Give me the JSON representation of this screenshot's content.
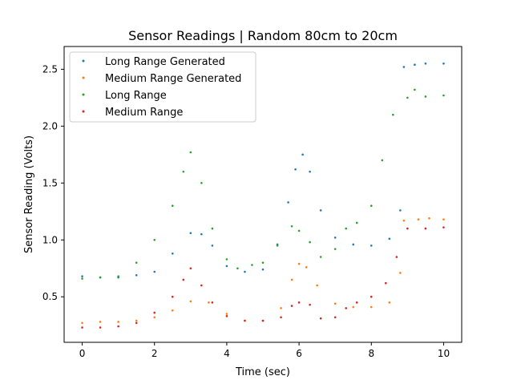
{
  "chart_data": {
    "type": "scatter",
    "title": "Sensor Readings | Random 80cm to 20cm",
    "xlabel": "Time (sec)",
    "ylabel": "Sensor Reading (Volts)",
    "xlim": [
      -0.5,
      10.5
    ],
    "ylim": [
      0.1,
      2.7
    ],
    "xticks": [
      0,
      2,
      4,
      6,
      8,
      10
    ],
    "xtick_labels": [
      "0",
      "2",
      "4",
      "6",
      "8",
      "10"
    ],
    "yticks": [
      0.5,
      1.0,
      1.5,
      2.0,
      2.5
    ],
    "ytick_labels": [
      "0.5",
      "1.0",
      "1.5",
      "2.0",
      "2.5"
    ],
    "grid": false,
    "legend_position": "top-left",
    "series": [
      {
        "name": "Long Range Generated",
        "color": "#1f77b4",
        "x": [
          0,
          0.5,
          1,
          1.5,
          2,
          2.5,
          3,
          3.3,
          3.6,
          4,
          4.5,
          5,
          5.4,
          5.7,
          5.9,
          6.1,
          6.3,
          6.6,
          7,
          7.5,
          8,
          8.5,
          8.8,
          8.9,
          9.2,
          9.5,
          10
        ],
        "y": [
          0.68,
          0.67,
          0.67,
          0.69,
          0.72,
          0.88,
          1.06,
          1.05,
          0.95,
          0.77,
          0.72,
          0.74,
          0.96,
          1.33,
          1.62,
          1.75,
          1.6,
          1.26,
          1.02,
          0.96,
          0.95,
          1.01,
          1.26,
          2.52,
          2.54,
          2.55,
          2.55
        ]
      },
      {
        "name": "Medium Range Generated",
        "color": "#ff7f0e",
        "x": [
          0,
          0.5,
          1,
          1.5,
          2,
          2.5,
          3,
          3.5,
          4,
          4.5,
          5,
          5.5,
          5.8,
          6,
          6.2,
          6.5,
          7,
          7.5,
          8,
          8.5,
          8.8,
          8.9,
          9.3,
          9.6,
          10
        ],
        "y": [
          0.27,
          0.28,
          0.28,
          0.29,
          0.32,
          0.38,
          0.46,
          0.45,
          0.35,
          0.29,
          0.29,
          0.4,
          0.65,
          0.79,
          0.76,
          0.6,
          0.44,
          0.41,
          0.41,
          0.45,
          0.71,
          1.17,
          1.18,
          1.19,
          1.18
        ]
      },
      {
        "name": "Long Range",
        "color": "#2ca02c",
        "x": [
          0,
          0.5,
          1,
          1.5,
          2,
          2.5,
          2.8,
          3,
          3.3,
          3.6,
          4,
          4.3,
          4.7,
          5,
          5.4,
          5.8,
          6,
          6.3,
          6.6,
          7,
          7.3,
          7.6,
          8,
          8.3,
          8.6,
          9,
          9.2,
          9.5,
          10
        ],
        "y": [
          0.66,
          0.67,
          0.68,
          0.8,
          1.0,
          1.3,
          1.6,
          1.77,
          1.5,
          1.1,
          0.83,
          0.75,
          0.78,
          0.8,
          0.95,
          1.12,
          1.08,
          0.98,
          0.85,
          0.92,
          1.1,
          1.15,
          1.3,
          1.7,
          2.1,
          2.25,
          2.32,
          2.26,
          2.27
        ]
      },
      {
        "name": "Medium Range",
        "color": "#d62728",
        "x": [
          0,
          0.5,
          1,
          1.5,
          2,
          2.5,
          2.8,
          3,
          3.3,
          3.6,
          4,
          4.5,
          5,
          5.5,
          5.8,
          6,
          6.3,
          6.6,
          7,
          7.3,
          7.6,
          8,
          8.4,
          8.7,
          9,
          9.5,
          10
        ],
        "y": [
          0.23,
          0.23,
          0.24,
          0.27,
          0.36,
          0.5,
          0.65,
          0.75,
          0.6,
          0.45,
          0.33,
          0.29,
          0.29,
          0.32,
          0.42,
          0.45,
          0.43,
          0.31,
          0.32,
          0.4,
          0.45,
          0.5,
          0.62,
          0.85,
          1.1,
          1.1,
          1.11
        ]
      }
    ]
  }
}
